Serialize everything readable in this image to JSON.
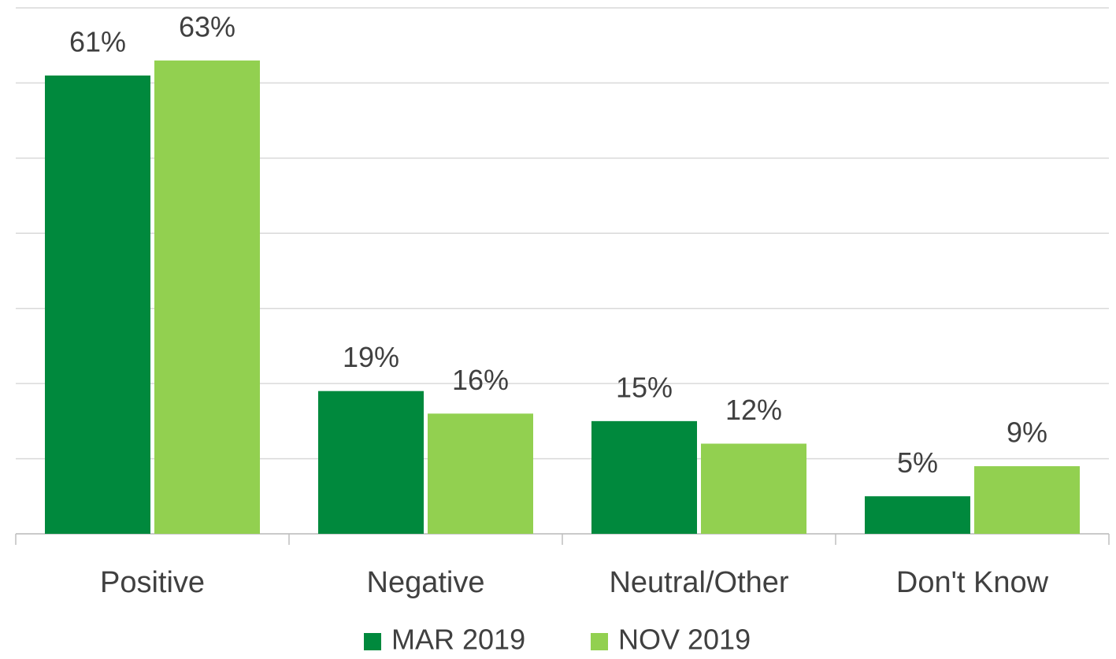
{
  "chart_data": {
    "type": "bar",
    "categories": [
      "Positive",
      "Negative",
      "Neutral/Other",
      "Don't Know"
    ],
    "series": [
      {
        "name": "MAR 2019",
        "color": "#00893d",
        "values": [
          61,
          19,
          15,
          5
        ],
        "value_labels": [
          "61%",
          "19%",
          "15%",
          "5%"
        ]
      },
      {
        "name": "NOV 2019",
        "color": "#92d050",
        "values": [
          63,
          16,
          12,
          9
        ],
        "value_labels": [
          "63%",
          "16%",
          "12%",
          "9%"
        ]
      }
    ],
    "ylim": [
      0,
      70
    ],
    "yticks": [
      0,
      10,
      20,
      30,
      40,
      50,
      60,
      70
    ],
    "grid": true,
    "legend": "bottom"
  }
}
